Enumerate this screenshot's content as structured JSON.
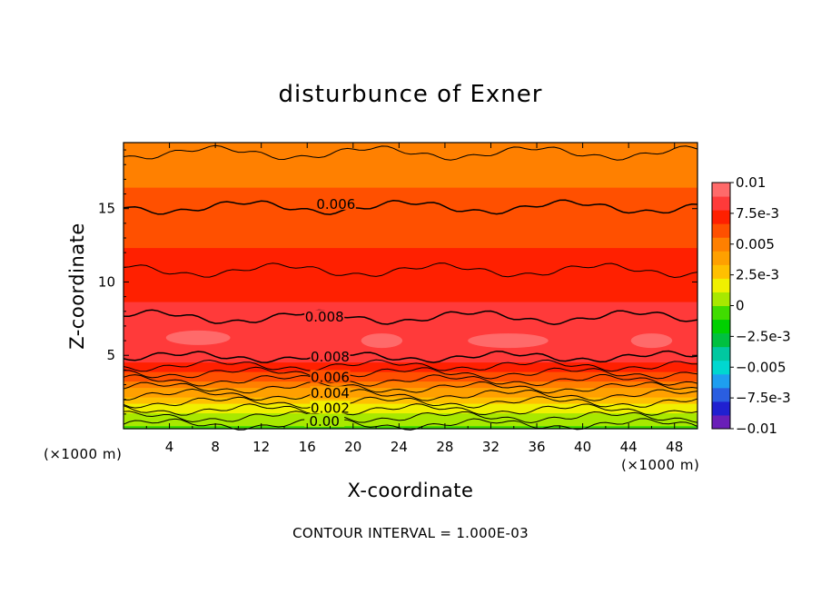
{
  "chart_data": {
    "type": "contour",
    "title": "disturbunce of Exner",
    "xlabel": "X-coordinate",
    "ylabel": "Z-coordinate",
    "x_unit": "(×1000 m)",
    "x_unit_left": "(×1000 m)",
    "xlim": [
      0,
      50
    ],
    "ylim": [
      0,
      19.5
    ],
    "x_ticks": [
      "4",
      "8",
      "12",
      "16",
      "20",
      "24",
      "28",
      "32",
      "36",
      "40",
      "44",
      "48"
    ],
    "y_ticks": [
      "5",
      "10",
      "15"
    ],
    "contour_interval_text": "CONTOUR INTERVAL = 1.000E-03",
    "contour_labels": [
      {
        "text": "0.006",
        "x": 18.5,
        "z": 15.3
      },
      {
        "text": "0.008",
        "x": 17.5,
        "z": 7.6
      },
      {
        "text": "0.008",
        "x": 18.0,
        "z": 4.9
      },
      {
        "text": "0.006",
        "x": 18.0,
        "z": 3.5
      },
      {
        "text": "0.004",
        "x": 18.0,
        "z": 2.4
      },
      {
        "text": "0.002",
        "x": 18.0,
        "z": 1.4
      },
      {
        "text": "0.00",
        "x": 17.5,
        "z": 0.5
      }
    ],
    "levels_profile": [
      {
        "z": 0.0,
        "value": -0.0008
      },
      {
        "z": 0.3,
        "value": 0.0002
      },
      {
        "z": 0.8,
        "value": 0.0008
      },
      {
        "z": 1.3,
        "value": 0.0015
      },
      {
        "z": 1.8,
        "value": 0.0025
      },
      {
        "z": 2.3,
        "value": 0.0035
      },
      {
        "z": 2.8,
        "value": 0.0045
      },
      {
        "z": 3.3,
        "value": 0.0055
      },
      {
        "z": 3.8,
        "value": 0.0065
      },
      {
        "z": 4.3,
        "value": 0.0075
      },
      {
        "z": 4.9,
        "value": 0.0081
      },
      {
        "z": 6.0,
        "value": 0.0088
      },
      {
        "z": 7.5,
        "value": 0.0081
      },
      {
        "z": 10.0,
        "value": 0.0074
      },
      {
        "z": 12.5,
        "value": 0.0066
      },
      {
        "z": 15.3,
        "value": 0.0059
      },
      {
        "z": 17.5,
        "value": 0.0053
      },
      {
        "z": 19.0,
        "value": 0.0048
      },
      {
        "z": 19.5,
        "value": 0.0046
      }
    ],
    "colorbar": {
      "range": [
        -0.01,
        0.01
      ],
      "labels": [
        "0.01",
        "7.5e-3",
        "0.005",
        "2.5e-3",
        "0",
        "−2.5e-3",
        "−0.005",
        "−7.5e-3",
        "−0.01"
      ],
      "colors": [
        "#6a1fb8",
        "#2020d0",
        "#2a5ee0",
        "#1e9ef0",
        "#00d7d0",
        "#00c8a0",
        "#00c040",
        "#00d000",
        "#40dc00",
        "#a8e800",
        "#f0f000",
        "#ffc000",
        "#ffa000",
        "#ff8000",
        "#ff5000",
        "#ff2000",
        "#ff3a3a",
        "#ff6a6a"
      ]
    }
  }
}
